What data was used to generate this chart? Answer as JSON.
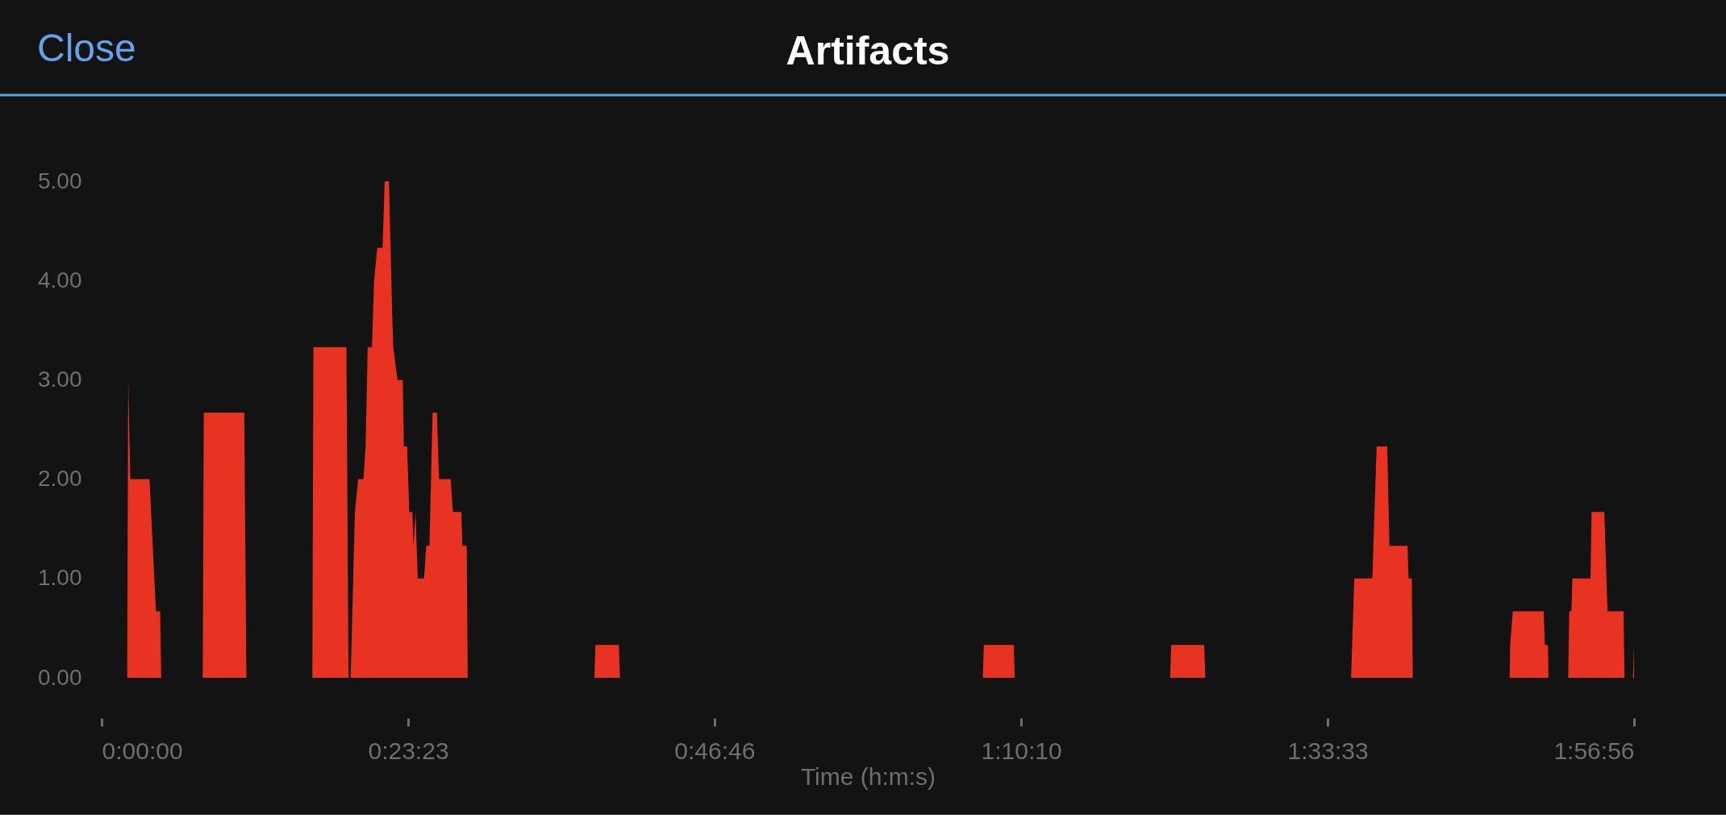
{
  "chart_data": {
    "type": "area",
    "title": "Artifacts",
    "xlabel": "Time (h:m:s)",
    "annotations": [
      "Close"
    ],
    "series": [
      {
        "color": "#e83323",
        "x": [
          0.0325,
          0.0338,
          0.0365,
          0.0609,
          0.069,
          0.0744,
          0.0758,
          0.1286,
          0.1299,
          0.1814,
          0.1841,
          0.268,
          0.2693,
          0.3113,
          0.314,
          0.3167,
          0.3221,
          0.3262,
          0.333,
          0.3357,
          0.3384,
          0.3438,
          0.3465,
          0.3506,
          0.3573,
          0.36,
          0.3654,
          0.3695,
          0.3709,
          0.3763,
          0.383,
          0.3844,
          0.3885,
          0.3912,
          0.3952,
          0.3966,
          0.3993,
          0.4006,
          0.402,
          0.4101,
          0.4128,
          0.4169,
          0.4209,
          0.4264,
          0.4291,
          0.4439,
          0.4467,
          0.4575,
          0.4588,
          0.4643,
          0.4656,
          0.6267,
          0.628,
          0.6578,
          0.6592,
          1.1207,
          1.122,
          1.16,
          1.1613,
          1.3589,
          1.3603,
          1.4022,
          1.4036,
          1.589,
          1.5931,
          1.6161,
          1.6174,
          1.6215,
          1.635,
          1.6378,
          1.6608,
          1.6621,
          1.6662,
          1.6675,
          1.7907,
          1.7913,
          1.7947,
          1.834,
          1.8354,
          1.8394,
          1.8401,
          1.8651,
          1.8665,
          1.8692,
          1.8705,
          1.8935,
          1.8949,
          1.9111,
          1.9138,
          1.9152,
          1.9355,
          1.9368,
          1.9476,
          1.9489
        ],
        "values": [
          0,
          3.0,
          2.0,
          2.0,
          0.67,
          0.67,
          0,
          0,
          2.67,
          2.67,
          0,
          0,
          3.33,
          3.33,
          0,
          0,
          1.67,
          2.0,
          2.0,
          2.33,
          3.33,
          3.33,
          4.0,
          4.33,
          4.33,
          5.0,
          5.0,
          3.67,
          3.33,
          3.0,
          3.0,
          2.33,
          2.33,
          1.67,
          1.67,
          1.33,
          1.67,
          1.33,
          1.0,
          1.0,
          1.33,
          1.33,
          2.67,
          2.67,
          2.0,
          2.0,
          1.67,
          1.67,
          1.33,
          1.33,
          0,
          0,
          0.33,
          0.33,
          0,
          0,
          0.33,
          0.33,
          0,
          0,
          0.33,
          0.33,
          0,
          0,
          1.0,
          1.0,
          1.33,
          2.33,
          2.33,
          1.33,
          1.33,
          1.0,
          1.0,
          0,
          0,
          0.33,
          0.67,
          0.67,
          0.33,
          0.33,
          0,
          0,
          0.67,
          0.67,
          1.0,
          1.0,
          1.67,
          1.67,
          1.0,
          0.67,
          0.67,
          0,
          0,
          0.33
        ]
      }
    ],
    "xlim": [
      0,
      1.9489
    ],
    "xticks": [
      {
        "value": 0,
        "label": "0:00:00"
      },
      {
        "value": 0.3898,
        "label": "0:23:23"
      },
      {
        "value": 0.7794,
        "label": "0:46:46"
      },
      {
        "value": 1.1694,
        "label": "1:10:10"
      },
      {
        "value": 1.5592,
        "label": "1:33:33"
      },
      {
        "value": 1.9489,
        "label": "1:56:56"
      }
    ],
    "ylim": [
      0,
      5
    ],
    "yticks": [
      {
        "value": 0,
        "label": "0.00"
      },
      {
        "value": 1,
        "label": "1.00"
      },
      {
        "value": 2,
        "label": "2.00"
      },
      {
        "value": 3,
        "label": "3.00"
      },
      {
        "value": 4,
        "label": "4.00"
      },
      {
        "value": 5,
        "label": "5.00"
      }
    ],
    "grid": false
  }
}
